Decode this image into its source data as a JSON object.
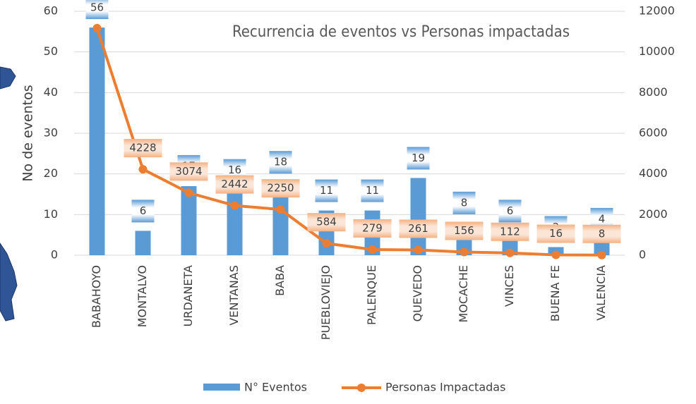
{
  "chart_data": {
    "type": "bar_line",
    "title": "Recurrencia de eventos vs Personas impactadas",
    "y_label": "No de eventos",
    "categories": [
      "BABAHOYO",
      "MONTALVO",
      "URDANETA",
      "VENTANAS",
      "BABA",
      "PUEBLOVIEJO",
      "PALENQUE",
      "QUEVEDO",
      "MOCACHE",
      "VINCES",
      "BUENA FE",
      "VALENCIA"
    ],
    "series": [
      {
        "name": "N° Eventos",
        "color": "#5b9bd5",
        "values": [
          56,
          6,
          17,
          16,
          18,
          11,
          11,
          19,
          8,
          6,
          2,
          4
        ]
      },
      {
        "name": "Personas Impactadas",
        "color": "#ed7d31",
        "axis": "y2",
        "values": [
          11170,
          4228,
          3074,
          2442,
          2250,
          584,
          279,
          261,
          156,
          112,
          16,
          8
        ]
      }
    ],
    "ylim": [
      0,
      60
    ],
    "yticks": [
      0,
      10,
      20,
      30,
      40,
      50,
      60
    ],
    "y2lim": [
      0,
      12000
    ],
    "y2ticks": [
      0,
      2000,
      4000,
      6000,
      8000,
      10000,
      12000
    ],
    "grid": true,
    "legend": "bottom"
  }
}
